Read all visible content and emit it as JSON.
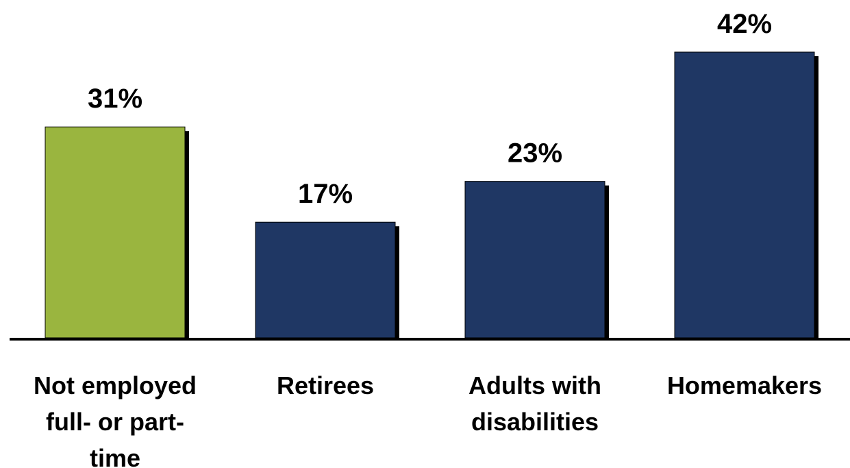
{
  "chart_data": {
    "type": "bar",
    "categories": [
      [
        "Not employed",
        "full- or part-",
        "time"
      ],
      [
        "Retirees"
      ],
      [
        "Adults with",
        "disabilities"
      ],
      [
        "Homemakers"
      ]
    ],
    "values": [
      31,
      17,
      23,
      42
    ],
    "value_labels": [
      "31%",
      "17%",
      "23%",
      "42%"
    ],
    "bar_colors": [
      "#9ab53f",
      "#1f3764",
      "#1f3764",
      "#1f3764"
    ],
    "shadow_color": "#000000",
    "axis_color": "#000000",
    "ylim": [
      0,
      42
    ],
    "title": "",
    "xlabel": "",
    "ylabel": "",
    "grid": false,
    "legend": "none"
  }
}
